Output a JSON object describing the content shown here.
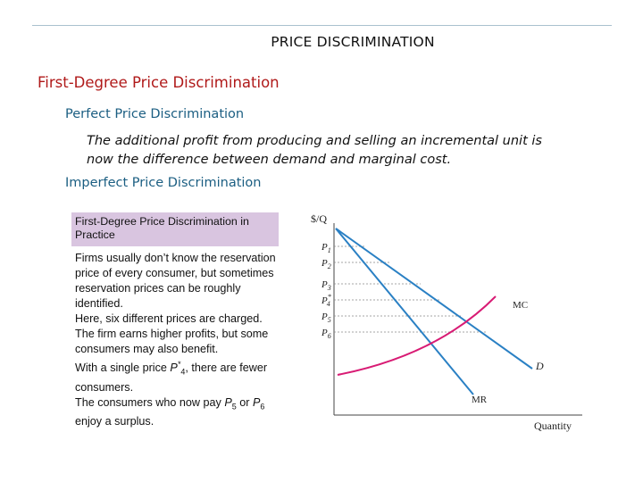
{
  "slide_title": "PRICE DISCRIMINATION",
  "heading": "First-Degree Price Discrimination",
  "subheading_perfect": "Perfect Price Discrimination",
  "perfect_text": "The additional profit from producing and selling an incremental unit is now the difference between demand and marginal cost.",
  "subheading_imperfect": "Imperfect Price Discrimination",
  "figure_caption": "First-Degree Price Discrimination in Practice",
  "paragraphs": {
    "p1": "Firms usually don’t know the reservation price of every consumer, but sometimes reservation prices can be roughly identified.",
    "p2": "Here, six different prices are charged. The firm earns higher profits, but some consumers may also benefit.",
    "p3_before": "With a single price ",
    "p3_var": "P",
    "p3_sup": "*",
    "p3_sub": "4",
    "p3_after": ", there are fewer consumers.",
    "p4_before": "The consumers who now pay ",
    "p4_var1": "P",
    "p4_sub1": "5",
    "p4_mid": " or ",
    "p4_var2": "P",
    "p4_sub2": "6",
    "p4_after": " enjoy a surplus."
  },
  "diagram": {
    "y_axis_label": "$/Q",
    "x_axis_label": "Quantity",
    "curve_labels": {
      "mc": "MC",
      "d": "D",
      "mr": "MR"
    },
    "price_labels": [
      {
        "base": "P",
        "sub": "1"
      },
      {
        "base": "P",
        "sub": "2"
      },
      {
        "base": "P",
        "sub": "3"
      },
      {
        "base": "P",
        "sup": "*",
        "sub": "4"
      },
      {
        "base": "P",
        "sub": "5"
      },
      {
        "base": "P",
        "sub": "6"
      }
    ],
    "colors": {
      "demand": "#2a80c4",
      "mr": "#2a80c4",
      "mc": "#d81b74",
      "axes": "#444444",
      "guides": "#888888"
    }
  }
}
